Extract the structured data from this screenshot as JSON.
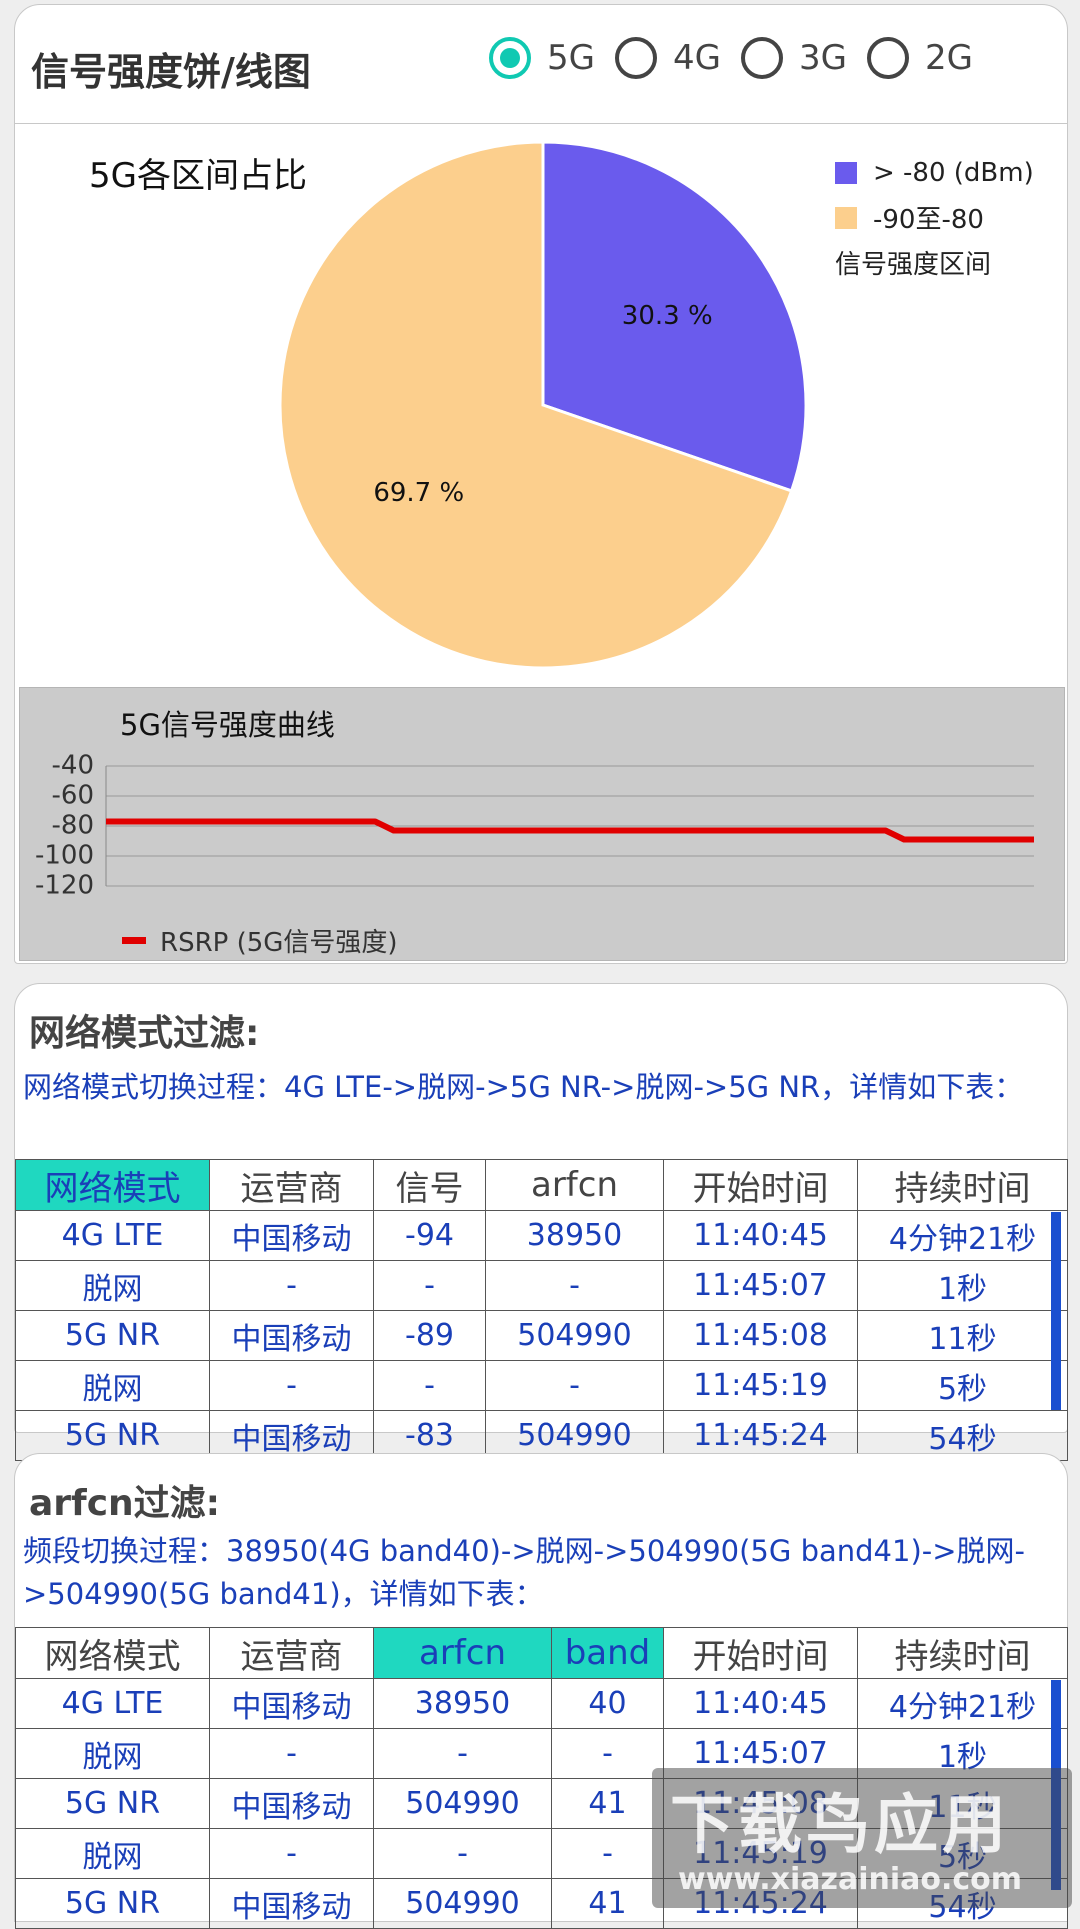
{
  "header": {
    "title": "信号强度饼/线图",
    "radio_options": [
      "5G",
      "4G",
      "3G",
      "2G"
    ],
    "selected": "5G"
  },
  "pie": {
    "title": "5G各区间占比",
    "legend_items": [
      "> -80 (dBm)",
      "-90至-80"
    ],
    "legend_caption": "信号强度区间",
    "slice_labels": [
      "30.3 %",
      "69.7 %"
    ]
  },
  "line": {
    "title": "5G信号强度曲线",
    "legend": "RSRP (5G信号强度)",
    "y_ticks": [
      "-40",
      "-60",
      "-80",
      "-100",
      "-120"
    ]
  },
  "chart_data": [
    {
      "type": "pie",
      "title": "5G各区间占比",
      "categories": [
        "> -80 (dBm)",
        "-90至-80"
      ],
      "values": [
        30.3,
        69.7
      ],
      "colors": [
        "#6a5bed",
        "#fccf8d"
      ],
      "legend_title": "信号强度区间",
      "legend_position": "top-right"
    },
    {
      "type": "line",
      "title": "5G信号强度曲线",
      "ylim": [
        -120,
        -40
      ],
      "y_ticks": [
        -40,
        -60,
        -80,
        -100,
        -120
      ],
      "grid": true,
      "legend_position": "bottom-left",
      "series": [
        {
          "name": "RSRP (5G信号强度)",
          "color": "#e00000",
          "x": [
            0,
            29,
            31,
            84,
            86,
            100
          ],
          "y": [
            -77,
            -77,
            -83,
            -83,
            -89,
            -89
          ]
        }
      ]
    }
  ],
  "network_filter": {
    "title": "网络模式过滤:",
    "description": "网络模式切换过程：4G LTE->脱网->5G NR->脱网->5G NR，详情如下表：",
    "columns": [
      "网络模式",
      "运营商",
      "信号",
      "arfcn",
      "开始时间",
      "持续时间"
    ],
    "rows": [
      [
        "4G LTE",
        "中国移动",
        "-94",
        "38950",
        "11:40:45",
        "4分钟21秒"
      ],
      [
        "脱网",
        "-",
        "-",
        "-",
        "11:45:07",
        "1秒"
      ],
      [
        "5G NR",
        "中国移动",
        "-89",
        "504990",
        "11:45:08",
        "11秒"
      ],
      [
        "脱网",
        "-",
        "-",
        "-",
        "11:45:19",
        "5秒"
      ],
      [
        "5G NR",
        "中国移动",
        "-83",
        "504990",
        "11:45:24",
        "54秒"
      ]
    ]
  },
  "arfcn_filter": {
    "title": "arfcn过滤:",
    "description": "频段切换过程：38950(4G band40)->脱网->504990(5G band41)->脱网->504990(5G band41)，详情如下表：",
    "columns": [
      "网络模式",
      "运营商",
      "arfcn",
      "band",
      "开始时间",
      "持续时间"
    ],
    "rows": [
      [
        "4G LTE",
        "中国移动",
        "38950",
        "40",
        "11:40:45",
        "4分钟21秒"
      ],
      [
        "脱网",
        "-",
        "-",
        "-",
        "11:45:07",
        "1秒"
      ],
      [
        "5G NR",
        "中国移动",
        "504990",
        "41",
        "11:45:08",
        "11秒"
      ],
      [
        "脱网",
        "-",
        "-",
        "-",
        "11:45:19",
        "5秒"
      ],
      [
        "5G NR",
        "中国移动",
        "504990",
        "41",
        "11:45:24",
        "54秒"
      ]
    ]
  },
  "watermark": {
    "big": "下载鸟应用",
    "small": "www.xiazainiao.com"
  }
}
